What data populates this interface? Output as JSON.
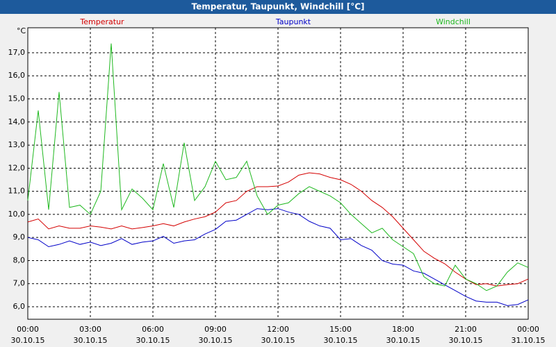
{
  "chart_data": {
    "type": "line",
    "title": "Temperatur, Taupunkt, Windchill [°C]",
    "y_unit": "°C",
    "x": [
      0,
      0.5,
      1,
      1.5,
      2,
      2.5,
      3,
      3.5,
      4,
      4.5,
      5,
      5.5,
      6,
      6.5,
      7,
      7.5,
      8,
      8.5,
      9,
      9.5,
      10,
      10.5,
      11,
      11.5,
      12,
      12.5,
      13,
      13.5,
      14,
      14.5,
      15,
      15.5,
      16,
      16.5,
      17,
      17.5,
      18,
      18.5,
      19,
      19.5,
      20,
      20.5,
      21,
      21.5,
      22,
      22.5,
      23,
      23.5,
      24
    ],
    "series": [
      {
        "name": "Temperatur",
        "color": "#d40000",
        "values": [
          9.67,
          9.8,
          9.37,
          9.5,
          9.4,
          9.4,
          9.5,
          9.45,
          9.37,
          9.5,
          9.37,
          9.43,
          9.5,
          9.6,
          9.5,
          9.67,
          9.8,
          9.9,
          10.1,
          10.5,
          10.6,
          11.0,
          11.2,
          11.2,
          11.23,
          11.4,
          11.7,
          11.8,
          11.75,
          11.6,
          11.5,
          11.3,
          11.0,
          10.6,
          10.3,
          9.9,
          9.4,
          8.9,
          8.4,
          8.1,
          7.86,
          7.5,
          7.2,
          6.96,
          7.0,
          6.9,
          6.96,
          7.0,
          7.2
        ]
      },
      {
        "name": "Taupunkt",
        "color": "#0000c8",
        "values": [
          9.0,
          8.9,
          8.6,
          8.7,
          8.85,
          8.7,
          8.8,
          8.65,
          8.75,
          8.95,
          8.7,
          8.8,
          8.85,
          9.05,
          8.75,
          8.85,
          8.9,
          9.15,
          9.35,
          9.7,
          9.75,
          10.0,
          10.25,
          10.2,
          10.25,
          10.1,
          10.0,
          9.7,
          9.5,
          9.4,
          8.9,
          8.95,
          8.65,
          8.45,
          8.0,
          7.85,
          7.8,
          7.55,
          7.45,
          7.2,
          6.95,
          6.7,
          6.45,
          6.25,
          6.2,
          6.2,
          6.05,
          6.1,
          6.3
        ]
      },
      {
        "name": "Windchill",
        "color": "#1fb81f",
        "values": [
          10.6,
          14.5,
          10.2,
          15.3,
          10.3,
          10.4,
          10.0,
          11.0,
          17.4,
          10.2,
          11.1,
          10.7,
          10.2,
          12.2,
          10.3,
          13.1,
          10.6,
          11.2,
          12.3,
          11.5,
          11.6,
          12.3,
          10.8,
          10.0,
          10.4,
          10.5,
          10.9,
          11.2,
          11.0,
          10.8,
          10.5,
          10.0,
          9.6,
          9.2,
          9.4,
          8.9,
          8.6,
          8.3,
          7.3,
          7.0,
          6.9,
          7.8,
          7.2,
          7.0,
          6.7,
          6.9,
          7.5,
          7.9,
          7.7
        ]
      }
    ],
    "xlim": [
      0,
      24
    ],
    "xticks": [
      {
        "value": 0,
        "label": "00:00 30.10.15"
      },
      {
        "value": 3,
        "label": "03:00 30.10.15"
      },
      {
        "value": 6,
        "label": "06:00 30.10.15"
      },
      {
        "value": 9,
        "label": "09:00 30.10.15"
      },
      {
        "value": 12,
        "label": "12:00 30.10.15"
      },
      {
        "value": 15,
        "label": "15:00 30.10.15"
      },
      {
        "value": 18,
        "label": "18:00 30.10.15"
      },
      {
        "value": 21,
        "label": "21:00 30.10.15"
      },
      {
        "value": 24,
        "label": "00:00 31.10.15"
      }
    ],
    "ylim": [
      5.46,
      18.08
    ],
    "yticks": [
      {
        "value": 6,
        "label": "6,0"
      },
      {
        "value": 7,
        "label": "7,0"
      },
      {
        "value": 8,
        "label": "8,0"
      },
      {
        "value": 9,
        "label": "9,0"
      },
      {
        "value": 10,
        "label": "10,0"
      },
      {
        "value": 11,
        "label": "11,0"
      },
      {
        "value": 12,
        "label": "12,0"
      },
      {
        "value": 13,
        "label": "13,0"
      },
      {
        "value": 14,
        "label": "14,0"
      },
      {
        "value": 15,
        "label": "15,0"
      },
      {
        "value": 16,
        "label": "16,0"
      },
      {
        "value": 17,
        "label": "17,0"
      }
    ],
    "grid": true
  }
}
